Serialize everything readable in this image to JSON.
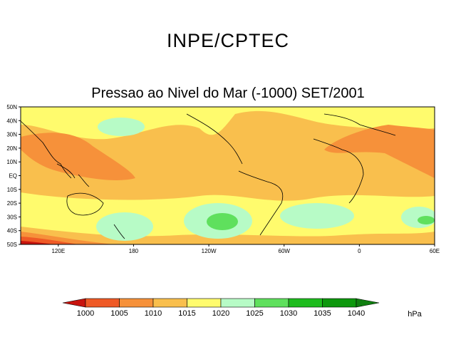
{
  "header": {
    "title": "INPE/CPTEC"
  },
  "map": {
    "title": "Pressao ao Nivel do Mar (-1000) SET/2001",
    "lat_ticks": [
      "50N",
      "40N",
      "30N",
      "20N",
      "10N",
      "EQ",
      "10S",
      "20S",
      "30S",
      "40S",
      "50S"
    ],
    "lon_ticks": [
      "120E",
      "180",
      "120W",
      "60W",
      "0",
      "60E"
    ],
    "lat_range": [
      -50,
      50
    ],
    "lon_range": [
      90,
      420
    ]
  },
  "colorbar": {
    "unit": "hPa",
    "levels": [
      "1000",
      "1005",
      "1010",
      "1015",
      "1020",
      "1025",
      "1030",
      "1035",
      "1040"
    ],
    "colors": [
      "#c8140e",
      "#ef5a26",
      "#f6913a",
      "#f9bf4d",
      "#fffb6d",
      "#b7fbc6",
      "#5fe05d",
      "#1ebc1e",
      "#0d980d",
      "#107f10"
    ]
  },
  "colors": {
    "background": "#ffffff",
    "coastline": "#000000"
  }
}
